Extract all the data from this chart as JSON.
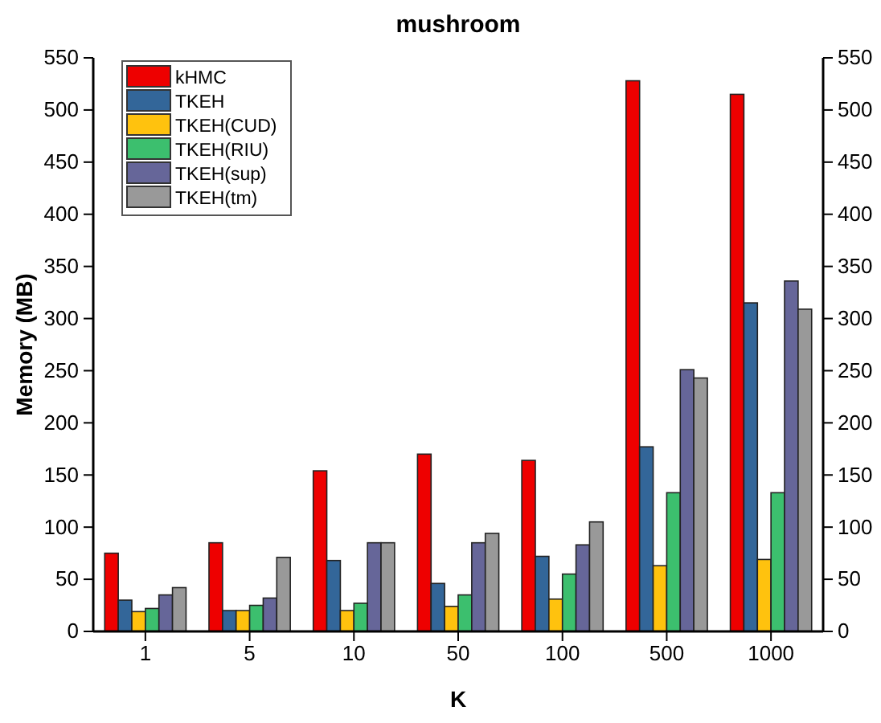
{
  "chart_data": {
    "type": "bar",
    "title": "mushroom",
    "xlabel": "K",
    "ylabel": "Memory (MB)",
    "categories": [
      "1",
      "5",
      "10",
      "50",
      "100",
      "500",
      "1000"
    ],
    "series": [
      {
        "name": "kHMC",
        "color": "#ee0000",
        "values": [
          75,
          85,
          154,
          170,
          164,
          528,
          515
        ]
      },
      {
        "name": "TKEH",
        "color": "#336699",
        "values": [
          30,
          20,
          68,
          46,
          72,
          177,
          315
        ]
      },
      {
        "name": "TKEH(CUD)",
        "color": "#ffc20e",
        "values": [
          19,
          20,
          20,
          24,
          31,
          63,
          69
        ]
      },
      {
        "name": "TKEH(RIU)",
        "color": "#3cbf6e",
        "values": [
          22,
          25,
          27,
          35,
          55,
          133,
          133
        ]
      },
      {
        "name": "TKEH(sup)",
        "color": "#666699",
        "values": [
          35,
          32,
          85,
          85,
          83,
          251,
          336
        ]
      },
      {
        "name": "TKEH(tm)",
        "color": "#999999",
        "values": [
          42,
          71,
          85,
          94,
          105,
          243,
          309
        ]
      }
    ],
    "ylim": [
      0,
      550
    ],
    "yticks": [
      0,
      50,
      100,
      150,
      200,
      250,
      300,
      350,
      400,
      450,
      500,
      550
    ],
    "y2lim": [
      0,
      550
    ],
    "y2ticks": [
      0,
      50,
      100,
      150,
      200,
      250,
      300,
      350,
      400,
      450,
      500,
      550
    ],
    "legend": "top left",
    "grid": false
  }
}
